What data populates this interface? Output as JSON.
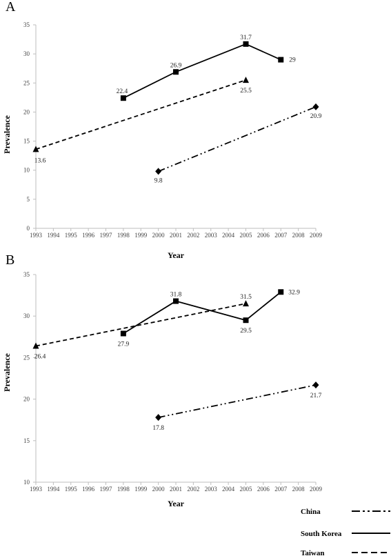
{
  "chart_data": [
    {
      "type": "line",
      "panel": "A",
      "x": [
        1993,
        1994,
        1995,
        1996,
        1997,
        1998,
        1999,
        2000,
        2001,
        2002,
        2003,
        2004,
        2005,
        2006,
        2007,
        2008,
        2009
      ],
      "xlabel": "Year",
      "ylabel": "Prevalence",
      "ylim": [
        0,
        35
      ],
      "yticks": [
        0,
        5,
        10,
        15,
        20,
        25,
        30,
        35
      ],
      "series": [
        {
          "name": "China",
          "style": "dash-dot-dot",
          "marker": "diamond",
          "points": [
            [
              2000,
              9.8
            ],
            [
              2009,
              20.9
            ]
          ],
          "labels": [
            "9.8",
            "20.9"
          ]
        },
        {
          "name": "South Korea",
          "style": "solid",
          "marker": "square",
          "points": [
            [
              1998,
              22.4
            ],
            [
              2001,
              26.9
            ],
            [
              2005,
              31.7
            ],
            [
              2007,
              29
            ]
          ],
          "labels": [
            "22.4",
            "26.9",
            "31.7",
            "29"
          ]
        },
        {
          "name": "Taiwan",
          "style": "dashed",
          "marker": "triangle",
          "points": [
            [
              1993,
              13.6
            ],
            [
              2005,
              25.5
            ]
          ],
          "labels": [
            "13.6",
            "25.5"
          ]
        }
      ]
    },
    {
      "type": "line",
      "panel": "B",
      "x": [
        1993,
        1994,
        1995,
        1996,
        1997,
        1998,
        1999,
        2000,
        2001,
        2002,
        2003,
        2004,
        2005,
        2006,
        2007,
        2008,
        2009
      ],
      "xlabel": "Year",
      "ylabel": "Prevalence",
      "ylim": [
        10,
        35
      ],
      "yticks": [
        10,
        15,
        20,
        25,
        30,
        35
      ],
      "series": [
        {
          "name": "China",
          "style": "dash-dot-dot",
          "marker": "diamond",
          "points": [
            [
              2000,
              17.8
            ],
            [
              2009,
              21.7
            ]
          ],
          "labels": [
            "17.8",
            "21.7"
          ]
        },
        {
          "name": "South Korea",
          "style": "solid",
          "marker": "square",
          "points": [
            [
              1998,
              27.9
            ],
            [
              2001,
              31.8
            ],
            [
              2005,
              29.5
            ],
            [
              2007,
              32.9
            ]
          ],
          "labels": [
            "27.9",
            "31.8",
            "29.5",
            "32.9"
          ]
        },
        {
          "name": "Taiwan",
          "style": "dashed",
          "marker": "triangle",
          "points": [
            [
              1993,
              26.4
            ],
            [
              2005,
              31.5
            ]
          ],
          "labels": [
            "26.4",
            "31.5"
          ]
        }
      ]
    }
  ],
  "legend": {
    "placement": "bottom-right",
    "items": [
      {
        "label": "China",
        "style": "dash-dot-dot"
      },
      {
        "label": "South Korea",
        "style": "solid"
      },
      {
        "label": "Taiwan",
        "style": "dashed"
      }
    ]
  }
}
